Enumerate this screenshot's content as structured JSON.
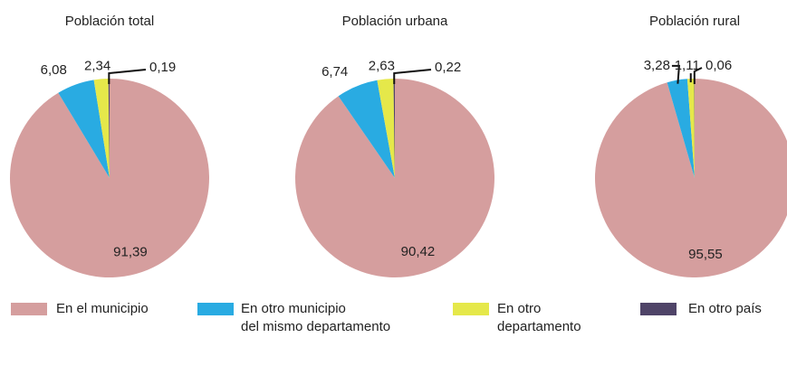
{
  "chart_data": [
    {
      "type": "pie",
      "title": "Población total",
      "values": [
        91.39,
        6.08,
        2.34,
        0.19
      ],
      "value_labels": [
        "91,39",
        "6,08",
        "2,34",
        "0,19"
      ]
    },
    {
      "type": "pie",
      "title": "Población urbana",
      "values": [
        90.42,
        6.74,
        2.63,
        0.22
      ],
      "value_labels": [
        "90,42",
        "6,74",
        "2,63",
        "0,22"
      ]
    },
    {
      "type": "pie",
      "title": "Población rural",
      "values": [
        95.55,
        3.28,
        1.11,
        0.06
      ],
      "value_labels": [
        "95,55",
        "3,28",
        "1,11",
        "0,06"
      ]
    }
  ],
  "legend": {
    "labels": [
      "En el municipio",
      "En otro municipio\ndel mismo departamento",
      "En otro\ndepartamento",
      "En otro país"
    ],
    "colors": [
      "#d59e9e",
      "#29abe2",
      "#e5e84a",
      "#4f4468"
    ]
  }
}
